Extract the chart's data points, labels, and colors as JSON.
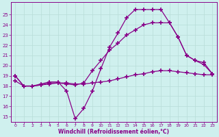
{
  "bg_color": "#cff0ee",
  "grid_color": "#b8ddd8",
  "line_color": "#880088",
  "marker": "+",
  "markersize": 4,
  "markeredgewidth": 1.2,
  "linewidth": 0.9,
  "xlabel": "Windchill (Refroidissement éolien,°C)",
  "xlabel_color": "#880088",
  "xtick_color": "#880088",
  "ytick_color": "#880088",
  "ylim": [
    14.5,
    26.2
  ],
  "xlim": [
    -0.5,
    23.5
  ],
  "yticks": [
    15,
    16,
    17,
    18,
    19,
    20,
    21,
    22,
    23,
    24,
    25
  ],
  "xticks": [
    0,
    1,
    2,
    3,
    4,
    5,
    6,
    7,
    8,
    9,
    10,
    11,
    12,
    13,
    14,
    15,
    16,
    17,
    18,
    19,
    20,
    21,
    22,
    23
  ],
  "lines": [
    {
      "x": [
        0,
        1,
        2,
        3,
        4,
        5,
        6,
        7,
        8,
        9,
        10,
        11,
        12,
        13,
        14,
        15,
        16,
        17,
        18,
        19,
        20,
        21,
        22,
        23
      ],
      "y": [
        19,
        18,
        18,
        18.2,
        18.4,
        18.4,
        17.5,
        14.8,
        15.8,
        17.5,
        19.7,
        21.8,
        23.2,
        24.7,
        25.5,
        25.5,
        25.5,
        25.5,
        24.2,
        22.8,
        21.0,
        20.5,
        20.1,
        19.2
      ]
    },
    {
      "x": [
        0,
        1,
        2,
        3,
        4,
        5,
        6,
        7,
        8,
        9,
        10,
        11,
        12,
        13,
        14,
        15,
        16,
        17,
        18,
        19,
        20,
        21,
        22,
        23
      ],
      "y": [
        18.5,
        18,
        18,
        18.1,
        18.3,
        18.3,
        18.2,
        18.1,
        18.3,
        19.5,
        20.5,
        21.5,
        22.2,
        23.0,
        23.5,
        24.0,
        24.2,
        24.2,
        24.2,
        22.8,
        21.0,
        20.5,
        20.3,
        19.2
      ]
    },
    {
      "x": [
        0,
        1,
        2,
        3,
        4,
        5,
        6,
        7,
        8,
        9,
        10,
        11,
        12,
        13,
        14,
        15,
        16,
        17,
        18,
        19,
        20,
        21,
        22,
        23
      ],
      "y": [
        19,
        18,
        18,
        18.1,
        18.2,
        18.3,
        18.3,
        18.2,
        18.2,
        18.3,
        18.4,
        18.5,
        18.7,
        18.9,
        19.1,
        19.2,
        19.4,
        19.5,
        19.5,
        19.4,
        19.3,
        19.2,
        19.1,
        19.1
      ]
    }
  ]
}
